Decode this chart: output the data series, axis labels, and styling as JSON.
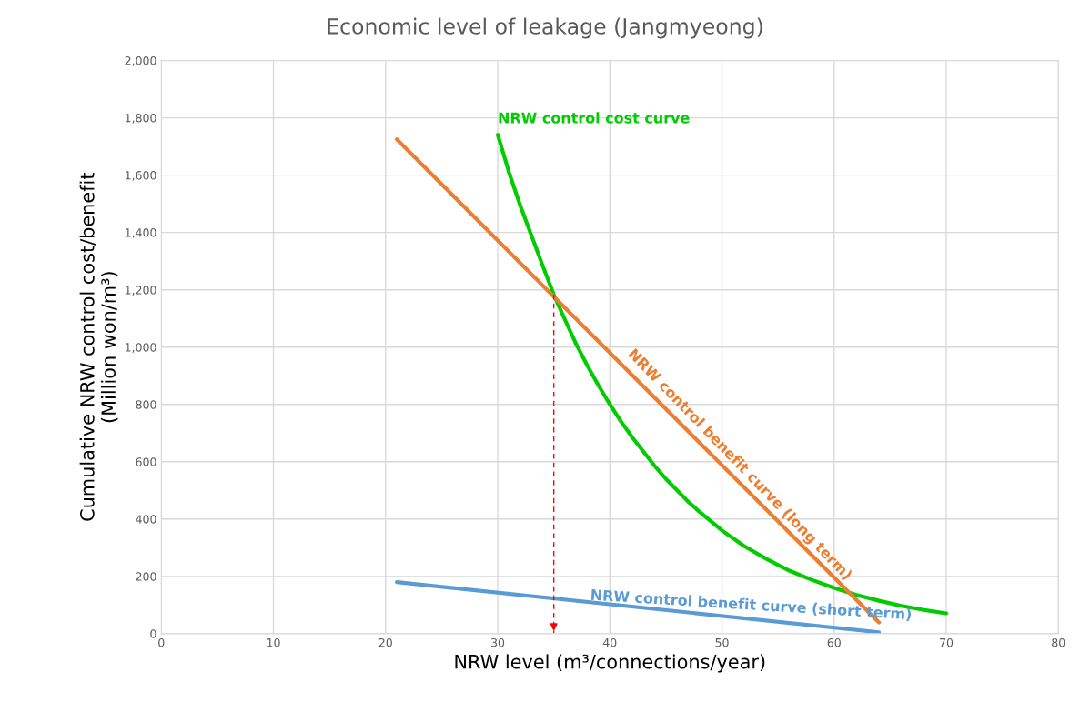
{
  "chart_data": {
    "type": "line",
    "title": "Economic level of leakage (Jangmyeong)",
    "xlabel": "NRW level (m³/connections/year)",
    "ylabel": "Cumulative NRW control cost/benefit\n(Million won/m³)",
    "xlim": [
      0,
      80
    ],
    "xticks": [
      0,
      10,
      20,
      30,
      40,
      50,
      60,
      70,
      80
    ],
    "ylim": [
      0,
      2000
    ],
    "yticks": [
      {
        "value": 0,
        "label": "0"
      },
      {
        "value": 200,
        "label": "200"
      },
      {
        "value": 400,
        "label": "400"
      },
      {
        "value": 600,
        "label": "600"
      },
      {
        "value": 800,
        "label": "800"
      },
      {
        "value": 1000,
        "label": "1,000"
      },
      {
        "value": 1200,
        "label": "1,200"
      },
      {
        "value": 1400,
        "label": "1,400"
      },
      {
        "value": 1600,
        "label": "1,600"
      },
      {
        "value": 1800,
        "label": "1,800"
      },
      {
        "value": 2000,
        "label": "2,000"
      }
    ],
    "grid": true,
    "legend": false,
    "marker": "none",
    "series": [
      {
        "name": "NRW control cost curve",
        "color": "#00cc00",
        "x": [
          30,
          31,
          32,
          33,
          34,
          35,
          36,
          37,
          38,
          39,
          40,
          41,
          42,
          43,
          44,
          45,
          46,
          47,
          48,
          50,
          52,
          54,
          56,
          58,
          60,
          62,
          64,
          66,
          68,
          70
        ],
        "values": [
          1741,
          1610,
          1495,
          1390,
          1285,
          1183,
          1095,
          1010,
          935,
          865,
          800,
          740,
          685,
          635,
          585,
          540,
          500,
          460,
          425,
          360,
          305,
          260,
          220,
          188,
          160,
          135,
          115,
          97,
          83,
          71
        ]
      },
      {
        "name": "NRW control benefit curve (long term)",
        "color": "#ed7d31",
        "x": [
          21,
          64
        ],
        "values": [
          1725,
          39
        ]
      },
      {
        "name": "NRW control benefit curve (short term)",
        "color": "#5b9bd5",
        "x": [
          21,
          64
        ],
        "values": [
          180,
          5
        ]
      },
      {
        "color": "#ff0000",
        "x": [
          35,
          35
        ],
        "values": [
          1183,
          0
        ],
        "line_style": "dashed"
      }
    ]
  }
}
